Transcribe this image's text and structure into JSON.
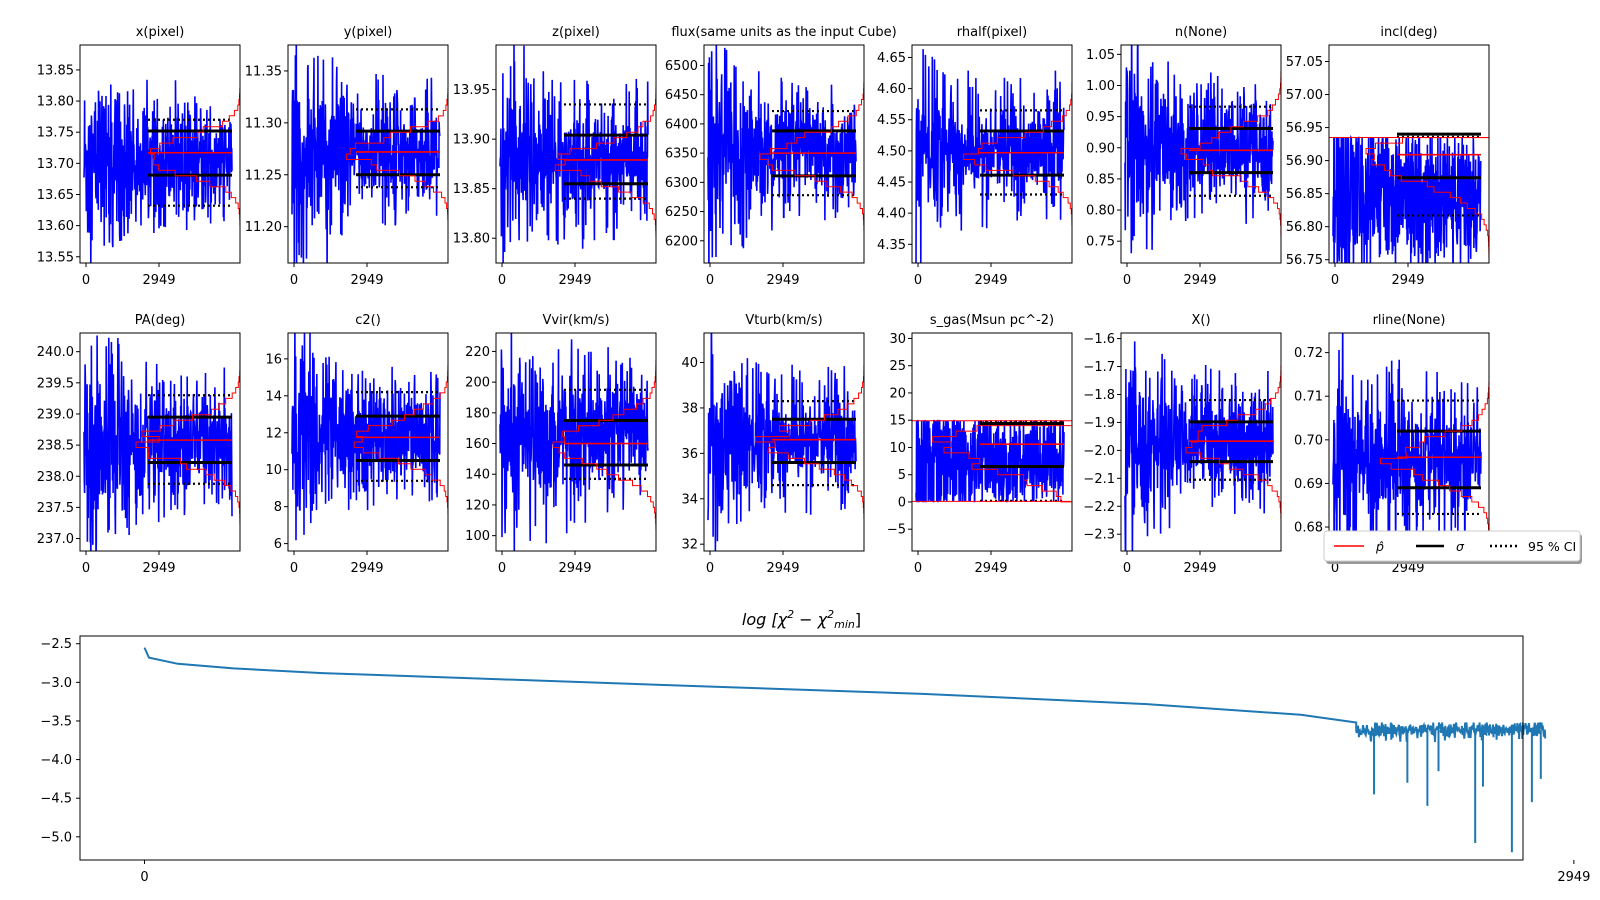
{
  "figure": {
    "colors": {
      "trace": "#0000ff",
      "posterior": "#ff0000",
      "median_line": "#ff0000",
      "sigma_line": "#000000",
      "ci_line": "#000000",
      "chi2_line": "#1f77b4"
    }
  },
  "legend": {
    "entries": [
      {
        "label": "p̂",
        "style": "red-solid"
      },
      {
        "label": "σ",
        "style": "black-solid"
      },
      {
        "label": "95 % CI",
        "style": "black-dotted"
      }
    ]
  },
  "chart_data": [
    {
      "type": "line",
      "title": "x(pixel)",
      "ylim": [
        13.54,
        13.89
      ],
      "yticks": [
        13.55,
        13.6,
        13.65,
        13.7,
        13.75,
        13.8,
        13.85
      ],
      "ytick_labels": [
        "13.55",
        "13.60",
        "13.65",
        "13.70",
        "13.75",
        "13.80",
        "13.85"
      ],
      "xticks": [
        0,
        2949
      ],
      "trace_center": 13.7,
      "trace_amp": 0.07,
      "trace_spike": 0.12,
      "median": 13.717,
      "sigma": [
        13.681,
        13.752
      ],
      "ci95": [
        13.632,
        13.77
      ],
      "hist_peak": 0.6,
      "hist_width": 0.06,
      "clip": null
    },
    {
      "type": "line",
      "title": "y(pixel)",
      "ylim": [
        11.165,
        11.375
      ],
      "yticks": [
        11.2,
        11.25,
        11.3,
        11.35
      ],
      "ytick_labels": [
        "11.20",
        "11.25",
        "11.30",
        "11.35"
      ],
      "xticks": [
        0,
        2949
      ],
      "trace_center": 11.27,
      "trace_amp": 0.04,
      "trace_spike": 0.09,
      "median": 11.272,
      "sigma": [
        11.25,
        11.292
      ],
      "ci95": [
        11.238,
        11.313
      ],
      "hist_peak": 0.6,
      "hist_width": 0.035,
      "clip": null
    },
    {
      "type": "line",
      "title": "z(pixel)",
      "ylim": [
        13.775,
        13.995
      ],
      "yticks": [
        13.8,
        13.85,
        13.9,
        13.95
      ],
      "ytick_labels": [
        "13.80",
        "13.85",
        "13.90",
        "13.95"
      ],
      "xticks": [
        0,
        2949
      ],
      "trace_center": 13.88,
      "trace_amp": 0.04,
      "trace_spike": 0.1,
      "median": 13.879,
      "sigma": [
        13.855,
        13.904
      ],
      "ci95": [
        13.84,
        13.935
      ],
      "hist_peak": 0.6,
      "hist_width": 0.04,
      "clip": null
    },
    {
      "type": "line",
      "title": "flux(same units as the input Cube)",
      "ylim": [
        6162,
        6535
      ],
      "yticks": [
        6200,
        6250,
        6300,
        6350,
        6400,
        6450,
        6500
      ],
      "ytick_labels": [
        "6200",
        "6250",
        "6300",
        "6350",
        "6400",
        "6450",
        "6500"
      ],
      "xticks": [
        0,
        2949
      ],
      "trace_center": 6350,
      "trace_amp": 70,
      "trace_spike": 150,
      "median": 6350,
      "sigma": [
        6311,
        6388
      ],
      "ci95": [
        6278,
        6422
      ],
      "hist_peak": 0.6,
      "hist_width": 70,
      "clip": null
    },
    {
      "type": "line",
      "title": "rhalf(pixel)",
      "ylim": [
        4.32,
        4.67
      ],
      "yticks": [
        4.35,
        4.4,
        4.45,
        4.5,
        4.55,
        4.6,
        4.65
      ],
      "ytick_labels": [
        "4.35",
        "4.40",
        "4.45",
        "4.50",
        "4.55",
        "4.60",
        "4.65"
      ],
      "xticks": [
        0,
        2949
      ],
      "trace_center": 4.5,
      "trace_amp": 0.06,
      "trace_spike": 0.14,
      "median": 4.497,
      "sigma": [
        4.461,
        4.532
      ],
      "ci95": [
        4.43,
        4.565
      ],
      "hist_peak": 0.6,
      "hist_width": 0.06,
      "clip": null
    },
    {
      "type": "line",
      "title": "n(None)",
      "ylim": [
        0.715,
        1.065
      ],
      "yticks": [
        0.75,
        0.8,
        0.85,
        0.9,
        0.95,
        1.0,
        1.05
      ],
      "ytick_labels": [
        "0.75",
        "0.80",
        "0.85",
        "0.90",
        "0.95",
        "1.00",
        "1.05"
      ],
      "xticks": [
        0,
        2949
      ],
      "trace_center": 0.9,
      "trace_amp": 0.07,
      "trace_spike": 0.14,
      "median": 0.896,
      "sigma": [
        0.86,
        0.931
      ],
      "ci95": [
        0.823,
        0.966
      ],
      "hist_peak": 0.6,
      "hist_width": 0.07,
      "clip": null
    },
    {
      "type": "line",
      "title": "incl(deg)",
      "ylim": [
        56.745,
        57.075
      ],
      "yticks": [
        56.75,
        56.8,
        56.85,
        56.9,
        56.95,
        57.0,
        57.05
      ],
      "ytick_labels": [
        "56.75",
        "56.80",
        "56.85",
        "56.90",
        "56.95",
        "57.00",
        "57.05"
      ],
      "xticks": [
        0,
        2949
      ],
      "trace_center": 56.845,
      "trace_amp": 0.09,
      "trace_spike": 0.1,
      "median": 56.909,
      "sigma": [
        56.874,
        56.94
      ],
      "ci95": [
        56.817,
        56.936
      ],
      "hist_peak": 0.75,
      "hist_width": 0.08,
      "clip": [
        null,
        56.935
      ]
    },
    {
      "type": "line",
      "title": "PA(deg)",
      "ylim": [
        236.8,
        240.3
      ],
      "yticks": [
        237.0,
        237.5,
        238.0,
        238.5,
        239.0,
        239.5,
        240.0
      ],
      "ytick_labels": [
        "237.0",
        "237.5",
        "238.0",
        "238.5",
        "239.0",
        "239.5",
        "240.0"
      ],
      "xticks": [
        0,
        2949
      ],
      "trace_center": 238.55,
      "trace_amp": 0.7,
      "trace_spike": 1.5,
      "median": 238.58,
      "sigma": [
        238.22,
        238.95
      ],
      "ci95": [
        237.88,
        239.3
      ],
      "hist_peak": 0.6,
      "hist_width": 0.7,
      "clip": null
    },
    {
      "type": "line",
      "title": "c2()",
      "ylim": [
        5.6,
        17.4
      ],
      "yticks": [
        6,
        8,
        10,
        12,
        14,
        16
      ],
      "ytick_labels": [
        "6",
        "8",
        "10",
        "12",
        "14",
        "16"
      ],
      "xticks": [
        0,
        2949
      ],
      "trace_center": 11.8,
      "trace_amp": 2.3,
      "trace_spike": 4.5,
      "median": 11.75,
      "sigma": [
        10.5,
        12.9
      ],
      "ci95": [
        9.4,
        14.2
      ],
      "hist_peak": 0.6,
      "hist_width": 2.2,
      "clip": null
    },
    {
      "type": "line",
      "title": "Vvir(km/s)",
      "ylim": [
        90,
        232
      ],
      "yticks": [
        100,
        120,
        140,
        160,
        180,
        200,
        220
      ],
      "ytick_labels": [
        "100",
        "120",
        "140",
        "160",
        "180",
        "200",
        "220"
      ],
      "xticks": [
        0,
        2949
      ],
      "trace_center": 165,
      "trace_amp": 30,
      "trace_spike": 70,
      "median": 160,
      "sigma": [
        146,
        175
      ],
      "ci95": [
        137,
        195
      ],
      "hist_peak": 0.6,
      "hist_width": 30,
      "clip": null
    },
    {
      "type": "line",
      "title": "Vturb(km/s)",
      "ylim": [
        31.7,
        41.3
      ],
      "yticks": [
        32,
        34,
        36,
        38,
        40
      ],
      "ytick_labels": [
        "32",
        "34",
        "36",
        "38",
        "40"
      ],
      "xticks": [
        0,
        2949
      ],
      "trace_center": 36.6,
      "trace_amp": 1.8,
      "trace_spike": 4.0,
      "median": 36.6,
      "sigma": [
        35.6,
        37.5
      ],
      "ci95": [
        34.6,
        38.3
      ],
      "hist_peak": 0.6,
      "hist_width": 1.8,
      "clip": null
    },
    {
      "type": "line",
      "title": "s_gas(Msun pc^-2)",
      "ylim": [
        -9,
        31
      ],
      "yticks": [
        -5,
        0,
        5,
        10,
        15,
        20,
        25,
        30
      ],
      "ytick_labels": [
        "−5",
        "0",
        "5",
        "10",
        "15",
        "20",
        "25",
        "30"
      ],
      "xticks": [
        0,
        2949
      ],
      "trace_center": 7.5,
      "trace_amp": 8,
      "trace_spike": 8,
      "median": 10.6,
      "sigma": [
        6.5,
        14.4
      ],
      "ci95": [
        0.2,
        14.8
      ],
      "hist_peak": 0.8,
      "hist_width": 9,
      "clip": [
        0.1,
        14.9
      ]
    },
    {
      "type": "line",
      "title": "X()",
      "ylim": [
        -2.36,
        -1.58
      ],
      "yticks": [
        -2.3,
        -2.2,
        -2.1,
        -2.0,
        -1.9,
        -1.8,
        -1.7,
        -1.6
      ],
      "ytick_labels": [
        "−2.3",
        "−2.2",
        "−2.1",
        "−2.0",
        "−1.9",
        "−1.8",
        "−1.7",
        "−1.6"
      ],
      "xticks": [
        0,
        2949
      ],
      "trace_center": -1.97,
      "trace_amp": 0.15,
      "trace_spike": 0.32,
      "median": -1.967,
      "sigma": [
        -2.04,
        -1.898
      ],
      "ci95": [
        -2.105,
        -1.82
      ],
      "hist_peak": 0.6,
      "hist_width": 0.15,
      "clip": null
    },
    {
      "type": "line",
      "title": "rline(None)",
      "ylim": [
        0.6745,
        0.7245
      ],
      "yticks": [
        0.68,
        0.69,
        0.7,
        0.71,
        0.72
      ],
      "ytick_labels": [
        "0.68",
        "0.69",
        "0.70",
        "0.71",
        "0.72"
      ],
      "xticks": [
        0,
        2949
      ],
      "trace_center": 0.696,
      "trace_amp": 0.01,
      "trace_spike": 0.025,
      "median": 0.696,
      "sigma": [
        0.689,
        0.702
      ],
      "ci95": [
        0.683,
        0.709
      ],
      "hist_peak": 0.6,
      "hist_width": 0.01,
      "clip": null
    },
    {
      "type": "line",
      "title": "log  [χ² − χ²_min]",
      "title_parts": {
        "prefix": "log  [χ",
        "sup1": "2",
        "mid": " − χ",
        "sup2": "2",
        "sub": "min",
        "suffix": "]"
      },
      "ylim": [
        -5.3,
        -2.4
      ],
      "yticks": [
        -5.0,
        -4.5,
        -4.0,
        -3.5,
        -3.0,
        -2.5
      ],
      "ytick_labels": [
        "−5.0",
        "−4.5",
        "−4.0",
        "−3.5",
        "−3.0",
        "−2.5"
      ],
      "xticks": [
        0,
        2949
      ],
      "xlim": [
        -290,
        6200
      ],
      "x_end": 5900,
      "decay_points": [
        [
          0,
          -2.55
        ],
        [
          20,
          -2.68
        ],
        [
          150,
          -2.76
        ],
        [
          400,
          -2.82
        ],
        [
          800,
          -2.88
        ],
        [
          1500,
          -2.95
        ],
        [
          2500,
          -3.05
        ],
        [
          3500,
          -3.15
        ],
        [
          4500,
          -3.28
        ],
        [
          5200,
          -3.42
        ],
        [
          5450,
          -3.52
        ]
      ],
      "noise_start": 5450,
      "noise_level": -3.62,
      "noise_amp": 0.12,
      "dips": [
        [
          5530,
          -4.45
        ],
        [
          5680,
          -4.3
        ],
        [
          5770,
          -4.6
        ],
        [
          5820,
          -4.15
        ],
        [
          5985,
          -5.08
        ],
        [
          6020,
          -4.35
        ],
        [
          6150,
          -5.2
        ],
        [
          6240,
          -4.55
        ],
        [
          6280,
          -4.25
        ]
      ]
    }
  ]
}
